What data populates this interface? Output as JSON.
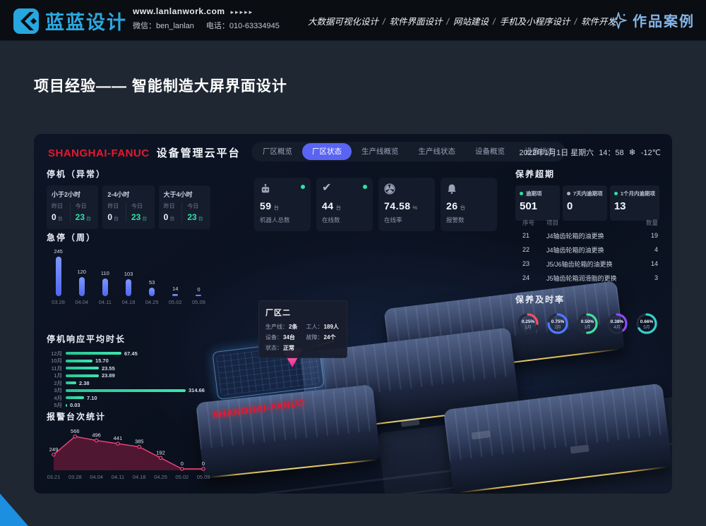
{
  "site_header": {
    "logo_text": "蓝蓝设计",
    "url": "www.lanlanwork.com",
    "url_arrows": "▸▸▸▸▸",
    "wechat": "微信：ben_lanlan",
    "phone": "电话：010-63334945",
    "services": [
      "大数据可视化设计",
      "软件界面设计",
      "网站建设",
      "手机及小程序设计",
      "软件开发"
    ],
    "portfolio_label": "作品案例",
    "accent_color": "#2aa9e1"
  },
  "page": {
    "title": "项目经验—— 智能制造大屏界面设计"
  },
  "icons": {
    "check_glyph": "✔",
    "snow_glyph": "❄"
  },
  "dashboard": {
    "brand": "SHANGHAI-FANUC",
    "app_title": "设备管理云平台",
    "sign_text": "SHANGHAI-FANUC",
    "tabs": [
      {
        "label": "厂区概览",
        "active": false
      },
      {
        "label": "厂区状态",
        "active": true
      },
      {
        "label": "生产线概览",
        "active": false
      },
      {
        "label": "生产线状态",
        "active": false
      },
      {
        "label": "设备概览",
        "active": false
      },
      {
        "label": "设备状态",
        "active": false
      }
    ],
    "datetime": {
      "date": "2022年1月1日 星期六",
      "time": "14：58",
      "temp": "-12℃"
    },
    "downtime": {
      "title": "停机（异常）",
      "yesterday_label": "昨日",
      "today_label": "今日",
      "unit": "台",
      "cards": [
        {
          "range": "小于2小时",
          "yesterday": "0",
          "today": "23"
        },
        {
          "range": "2-4小时",
          "yesterday": "0",
          "today": "23"
        },
        {
          "range": "大于4小时",
          "yesterday": "0",
          "today": "23"
        }
      ]
    },
    "kpis": [
      {
        "value": "59",
        "unit": "台",
        "label": "机器人总数",
        "online_dot": true
      },
      {
        "value": "44",
        "unit": "台",
        "label": "在线数",
        "online_dot": true
      },
      {
        "value": "74.58",
        "unit": "%",
        "label": "在线率",
        "online_dot": false
      },
      {
        "value": "26",
        "unit": "台",
        "label": "报警数",
        "online_dot": false
      }
    ],
    "tooltip": {
      "title": "厂区二",
      "pairs": [
        {
          "label": "生产线：",
          "value": "2条"
        },
        {
          "label": "工人：",
          "value": "189人"
        },
        {
          "label": "设备：",
          "value": "34台"
        },
        {
          "label": "故障：",
          "value": "24个"
        },
        {
          "label": "状态：",
          "value": "正常"
        }
      ]
    },
    "overdue": {
      "title": "保养超期",
      "cards": [
        {
          "label": "逾期项",
          "value": "501",
          "dot_color": "#2fe3a5"
        },
        {
          "label": "7天内逾期项",
          "value": "0",
          "dot_color": "#aab3c2"
        },
        {
          "label": "1个月内逾期项",
          "value": "13",
          "dot_color": "#2fe3a5"
        }
      ]
    },
    "table": {
      "headers": [
        "序号",
        "项目",
        "数量"
      ],
      "rows": [
        [
          "21",
          "J4轴齿轮箱的油更换",
          "19"
        ],
        [
          "22",
          "J4轴齿轮箱的油更换",
          "4"
        ],
        [
          "23",
          "J5/J6轴齿轮箱的油更换",
          "14"
        ],
        [
          "24",
          "J5轴齿轮箱润滑脂的更换",
          "3"
        ]
      ]
    },
    "timeliness": {
      "title": "保养及时率",
      "gauges": [
        {
          "value": "0.25%",
          "month": "1月",
          "percent": 25,
          "color": "#fa4d63"
        },
        {
          "value": "0.75%",
          "month": "2月",
          "percent": 75,
          "color": "#4d7bfd"
        },
        {
          "value": "0.50%",
          "month": "3月",
          "percent": 50,
          "color": "#3fe0a0"
        },
        {
          "value": "0.38%",
          "month": "4月",
          "percent": 38,
          "color": "#9049f5"
        },
        {
          "value": "0.66%",
          "month": "5月",
          "percent": 66,
          "color": "#32d2c8"
        }
      ]
    }
  },
  "chart_data": [
    {
      "id": "estop",
      "type": "bar",
      "title": "急停（周）",
      "categories": [
        "03.28",
        "04.04",
        "04.11",
        "04.18",
        "04.25",
        "05.02",
        "05.09"
      ],
      "values": [
        245,
        120,
        110,
        103,
        53,
        14,
        0
      ],
      "labels": [
        "245",
        "120",
        "110",
        "103",
        "53",
        "14",
        "0"
      ],
      "ylim": [
        0,
        245
      ],
      "bar_color": "#5f7af8",
      "grid": false,
      "xlabel": "",
      "ylabel": ""
    },
    {
      "id": "response",
      "type": "bar",
      "orientation": "horizontal",
      "title": "停机响应平均时长",
      "categories": [
        "12月",
        "10月",
        "11月",
        "1月",
        "2月",
        "3月",
        "4月",
        "5月"
      ],
      "values": [
        67.45,
        15.7,
        23.55,
        23.89,
        2.38,
        314.66,
        7.1,
        0.03
      ],
      "labels": [
        "67.45",
        "15.70",
        "23.55",
        "23.89",
        "2.38",
        "314.66",
        "7.10",
        "0.03"
      ],
      "xlim": [
        0,
        314.66
      ],
      "bar_color": "#2fd9a2",
      "grid": false,
      "xlabel": "",
      "ylabel": ""
    },
    {
      "id": "alarms",
      "type": "area",
      "title": "报警台次统计",
      "categories": [
        "03.21",
        "03.28",
        "04.04",
        "04.11",
        "04.18",
        "04.25",
        "05.02",
        "05.09"
      ],
      "values": [
        249,
        566,
        496,
        441,
        385,
        192,
        0,
        0
      ],
      "labels": [
        "249",
        "566",
        "496",
        "441",
        "385",
        "192",
        "0",
        "0"
      ],
      "ylim": [
        0,
        566
      ],
      "line_color": "#f2457a",
      "fill_color": "rgba(226,38,92,0.32)",
      "grid": false
    }
  ]
}
